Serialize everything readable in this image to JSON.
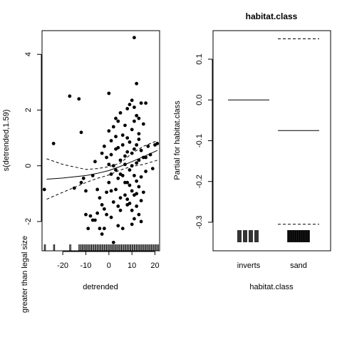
{
  "chart_data": [
    {
      "type": "scatter",
      "title": "",
      "xlabel": "detrended",
      "ylabel": "s(detrended,1.59)",
      "outer_ylabel": "greater than legal size",
      "xlim": [
        -29,
        22
      ],
      "ylim": [
        -3.05,
        4.85
      ],
      "xticks": [
        -20,
        -10,
        0,
        10,
        20
      ],
      "yticks": [
        -2,
        0,
        2,
        4
      ],
      "points": [
        [
          -28,
          -0.85
        ],
        [
          -24,
          0.8
        ],
        [
          -17,
          2.5
        ],
        [
          -13,
          2.4
        ],
        [
          -12,
          1.2
        ],
        [
          -11,
          -0.45
        ],
        [
          -10,
          -0.9
        ],
        [
          -10,
          -1.75
        ],
        [
          -9,
          -2.25
        ],
        [
          -8,
          -1.8
        ],
        [
          -7,
          -1.95
        ],
        [
          -6,
          0.15
        ],
        [
          -5,
          -0.85
        ],
        [
          -5,
          -1.7
        ],
        [
          -4,
          -2.25
        ],
        [
          -3,
          0.45
        ],
        [
          -3,
          -1.4
        ],
        [
          -2,
          -1.55
        ],
        [
          -2,
          -2.25
        ],
        [
          -1,
          -0.95
        ],
        [
          -1,
          -1.75
        ],
        [
          0,
          0.05
        ],
        [
          0,
          -0.6
        ],
        [
          0,
          2.6
        ],
        [
          1,
          0.9
        ],
        [
          1,
          -0.3
        ],
        [
          1,
          -1.85
        ],
        [
          2,
          0.0
        ],
        [
          2,
          -1.3
        ],
        [
          2,
          1.4
        ],
        [
          3,
          0.6
        ],
        [
          3,
          -0.85
        ],
        [
          3,
          1.05
        ],
        [
          4,
          -0.45
        ],
        [
          4,
          1.6
        ],
        [
          4,
          -2.15
        ],
        [
          5,
          0.2
        ],
        [
          5,
          1.9
        ],
        [
          5,
          -1.6
        ],
        [
          6,
          -0.35
        ],
        [
          6,
          0.75
        ],
        [
          6,
          -2.25
        ],
        [
          7,
          0.05
        ],
        [
          7,
          1.45
        ],
        [
          7,
          -1.05
        ],
        [
          8,
          2.05
        ],
        [
          8,
          -0.6
        ],
        [
          8,
          0.5
        ],
        [
          8,
          -1.2
        ],
        [
          9,
          2.2
        ],
        [
          9,
          -0.15
        ],
        [
          9,
          -1.35
        ],
        [
          10,
          2.35
        ],
        [
          10,
          1.3
        ],
        [
          10,
          0.0
        ],
        [
          10,
          -0.9
        ],
        [
          10,
          -1.6
        ],
        [
          10,
          -2.1
        ],
        [
          11,
          2.1
        ],
        [
          11,
          0.6
        ],
        [
          11,
          -0.35
        ],
        [
          11,
          -1.05
        ],
        [
          11,
          4.6
        ],
        [
          12,
          1.8
        ],
        [
          12,
          0.75
        ],
        [
          12,
          -0.55
        ],
        [
          12,
          -1.45
        ],
        [
          12,
          2.95
        ],
        [
          13,
          1.15
        ],
        [
          13,
          0.2
        ],
        [
          13,
          -0.75
        ],
        [
          13,
          -1.75
        ],
        [
          14,
          2.25
        ],
        [
          14,
          0.55
        ],
        [
          14,
          -0.4
        ],
        [
          14,
          -1.25
        ],
        [
          15,
          1.5
        ],
        [
          15,
          -0.95
        ],
        [
          16,
          2.25
        ],
        [
          16,
          0.3
        ],
        [
          16,
          -0.2
        ],
        [
          17,
          0.7
        ],
        [
          18,
          0.4
        ],
        [
          19,
          -0.1
        ],
        [
          20,
          0.75
        ],
        [
          21,
          0.8
        ],
        [
          -2,
          0.7
        ],
        [
          0,
          1.25
        ],
        [
          1,
          -0.9
        ],
        [
          2,
          -2.75
        ],
        [
          3,
          -0.15
        ],
        [
          4,
          0.65
        ],
        [
          5,
          -1.15
        ],
        [
          6,
          1.1
        ],
        [
          7,
          -0.6
        ],
        [
          8,
          1.0
        ],
        [
          9,
          0.85
        ],
        [
          10,
          0.45
        ],
        [
          11,
          1.6
        ],
        [
          12,
          -1.0
        ],
        [
          13,
          1.7
        ],
        [
          14,
          -2.0
        ],
        [
          15,
          0.3
        ],
        [
          -12,
          -0.6
        ],
        [
          -6,
          -1.95
        ],
        [
          -4,
          -1.15
        ],
        [
          -1,
          0.3
        ],
        [
          3,
          1.7
        ],
        [
          5,
          -0.3
        ],
        [
          7,
          0.35
        ],
        [
          9,
          -0.7
        ],
        [
          11,
          -1.9
        ],
        [
          13,
          0.95
        ],
        [
          -15,
          -0.8
        ],
        [
          -7,
          -0.35
        ],
        [
          -3,
          -2.45
        ],
        [
          1,
          0.4
        ],
        [
          4,
          -1.45
        ],
        [
          8,
          -1.4
        ],
        [
          12,
          0.1
        ]
      ],
      "fit_line": [
        [
          -27,
          -0.48
        ],
        [
          -20,
          -0.44
        ],
        [
          -10,
          -0.35
        ],
        [
          -5,
          -0.27
        ],
        [
          0,
          -0.17
        ],
        [
          5,
          -0.02
        ],
        [
          10,
          0.15
        ],
        [
          15,
          0.33
        ],
        [
          21,
          0.55
        ]
      ],
      "upper_band": [
        [
          -27,
          0.25
        ],
        [
          -20,
          0.05
        ],
        [
          -10,
          -0.13
        ],
        [
          -5,
          -0.1
        ],
        [
          0,
          -0.03
        ],
        [
          5,
          0.1
        ],
        [
          10,
          0.45
        ],
        [
          15,
          0.7
        ],
        [
          21,
          0.9
        ]
      ],
      "lower_band": [
        [
          -27,
          -1.2
        ],
        [
          -20,
          -0.95
        ],
        [
          -10,
          -0.6
        ],
        [
          -5,
          -0.45
        ],
        [
          0,
          -0.33
        ],
        [
          5,
          -0.15
        ],
        [
          10,
          -0.02
        ],
        [
          15,
          0.05
        ],
        [
          21,
          0.2
        ]
      ],
      "rug": [
        -28,
        -24,
        -17,
        -13,
        -12,
        -11,
        -10,
        -9,
        -8,
        -7,
        -6,
        -5,
        -4,
        -3,
        -2,
        -1,
        0,
        1,
        2,
        3,
        4,
        5,
        6,
        7,
        8,
        9,
        10,
        11,
        12,
        13,
        14,
        15,
        16,
        17,
        18,
        19,
        20,
        21
      ],
      "grid": false
    },
    {
      "type": "termplot",
      "title": "habitat.class",
      "xlabel": "habitat.class",
      "ylabel": "Partial for habitat.class",
      "categories": [
        "inverts",
        "sand"
      ],
      "ylim": [
        -0.37,
        0.17
      ],
      "yticks": [
        -0.3,
        -0.2,
        -0.1,
        0.0,
        0.1
      ],
      "ytick_labels": [
        "-0.3",
        "-0.2",
        "-0.1",
        "0.0",
        "0.1"
      ],
      "values": [
        0.0,
        -0.075
      ],
      "upper": [
        null,
        0.15
      ],
      "lower": [
        null,
        -0.305
      ],
      "grid": false
    }
  ]
}
